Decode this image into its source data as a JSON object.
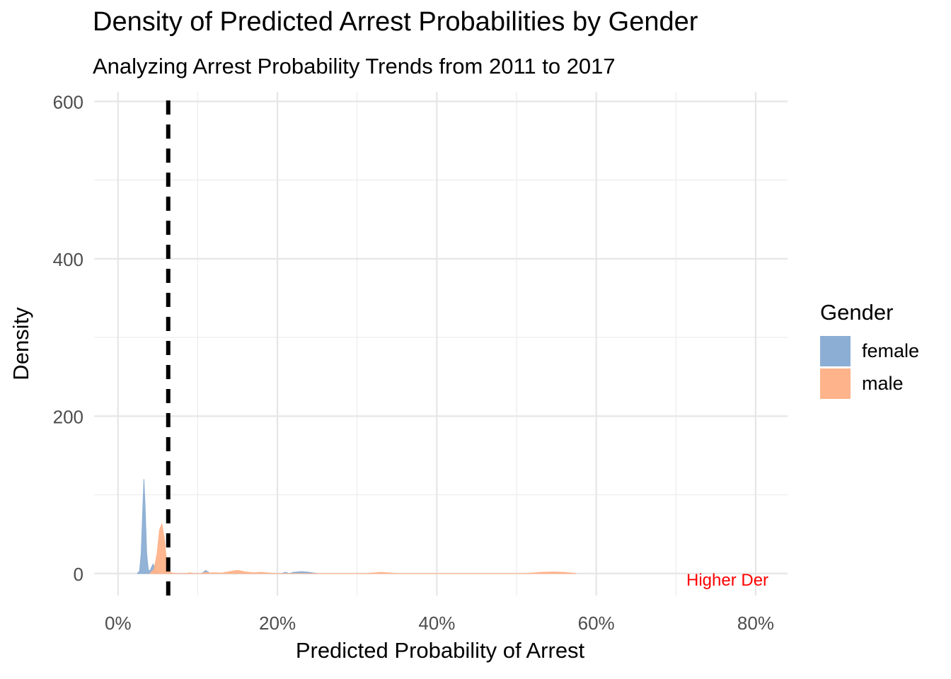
{
  "chart_data": {
    "type": "area",
    "title": "Density of Predicted Arrest Probabilities by Gender",
    "subtitle": "Analyzing Arrest Probability Trends from 2011 to 2017",
    "xlabel": "Predicted Probability of Arrest",
    "ylabel": "Density",
    "xlim": [
      -0.03,
      0.84
    ],
    "ylim": [
      -28,
      612
    ],
    "x_ticks": [
      0,
      0.2,
      0.4,
      0.6,
      0.8
    ],
    "x_tick_labels": [
      "0%",
      "20%",
      "40%",
      "60%",
      "80%"
    ],
    "y_ticks": [
      0,
      200,
      400,
      600
    ],
    "y_tick_labels": [
      "0",
      "200",
      "400",
      "600"
    ],
    "grid": true,
    "legend": {
      "title": "Gender",
      "position": "right",
      "entries": [
        {
          "label": "female",
          "color": "#8CAED4"
        },
        {
          "label": "male",
          "color": "#FFB38A"
        }
      ]
    },
    "reference_line": {
      "x": 0.063,
      "style": "dashed",
      "color": "#000000"
    },
    "annotation": {
      "text": "Higher Der",
      "x": 0.71,
      "y": 0,
      "color": "#FF0000"
    },
    "series": [
      {
        "name": "female",
        "color": "#8CAED4",
        "points": [
          [
            0.024,
            0
          ],
          [
            0.027,
            3
          ],
          [
            0.029,
            25
          ],
          [
            0.031,
            80
          ],
          [
            0.0325,
            120
          ],
          [
            0.034,
            85
          ],
          [
            0.036,
            25
          ],
          [
            0.038,
            5
          ],
          [
            0.04,
            3
          ],
          [
            0.042,
            8
          ],
          [
            0.044,
            12
          ],
          [
            0.046,
            7
          ],
          [
            0.049,
            2
          ],
          [
            0.052,
            0.5
          ],
          [
            0.06,
            0
          ],
          [
            0.105,
            0
          ],
          [
            0.11,
            4
          ],
          [
            0.115,
            0.5
          ],
          [
            0.12,
            0
          ],
          [
            0.205,
            0
          ],
          [
            0.21,
            1.5
          ],
          [
            0.215,
            0
          ],
          [
            0.22,
            1.5
          ],
          [
            0.23,
            2.5
          ],
          [
            0.24,
            1.5
          ],
          [
            0.25,
            0
          ]
        ]
      },
      {
        "name": "male",
        "color": "#FFB38A",
        "points": [
          [
            0.04,
            0
          ],
          [
            0.045,
            5
          ],
          [
            0.049,
            25
          ],
          [
            0.052,
            55
          ],
          [
            0.055,
            63
          ],
          [
            0.058,
            45
          ],
          [
            0.061,
            15
          ],
          [
            0.064,
            3
          ],
          [
            0.068,
            0.5
          ],
          [
            0.075,
            0
          ],
          [
            0.085,
            0
          ],
          [
            0.09,
            1
          ],
          [
            0.095,
            0
          ],
          [
            0.105,
            0
          ],
          [
            0.11,
            1.5
          ],
          [
            0.115,
            0.5
          ],
          [
            0.12,
            1
          ],
          [
            0.13,
            0.5
          ],
          [
            0.14,
            2.5
          ],
          [
            0.15,
            4
          ],
          [
            0.16,
            2
          ],
          [
            0.17,
            1
          ],
          [
            0.18,
            1.5
          ],
          [
            0.19,
            0.5
          ],
          [
            0.2,
            0
          ],
          [
            0.31,
            0
          ],
          [
            0.33,
            1.5
          ],
          [
            0.35,
            0
          ],
          [
            0.51,
            0
          ],
          [
            0.53,
            1.5
          ],
          [
            0.545,
            2
          ],
          [
            0.56,
            1.5
          ],
          [
            0.575,
            0
          ]
        ]
      }
    ]
  }
}
